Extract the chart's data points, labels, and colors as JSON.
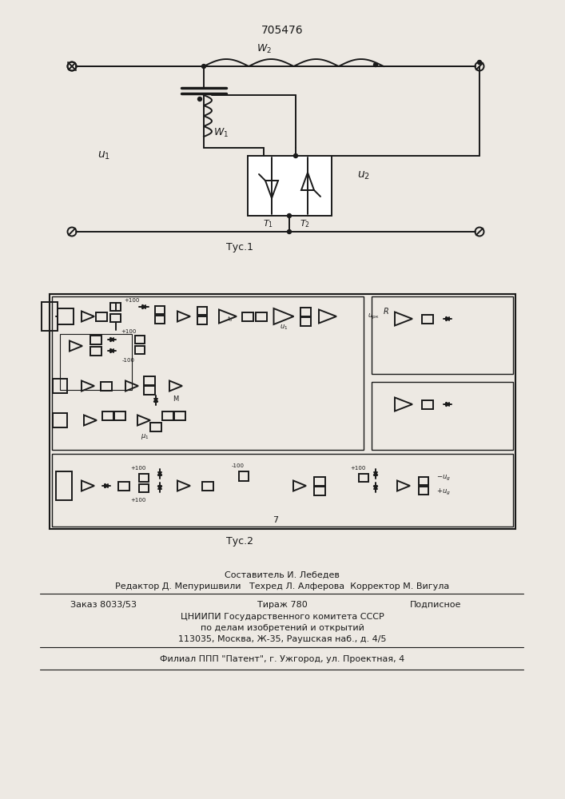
{
  "title": "705476",
  "fig1_label": "Τус.1",
  "fig2_label": "Τус.2",
  "bg_color": "#ede9e3",
  "line_color": "#1a1a1a",
  "text_color": "#1a1a1a",
  "footer_line1": "Составитель И. Лебедев",
  "footer_line2": "Редактор Д. Мепуришвили   Техред Л. Алферова  Корректор М. Вигула",
  "footer_zakaz": "Заказ 8033/53",
  "footer_tirazh": "Тираж 780",
  "footer_podp": "Подписное",
  "footer_cniip1": "ЦНИИПИ Государственного комитета СССР",
  "footer_cniip2": "по делам изобретений и открытий",
  "footer_addr": "113035, Москва, Ж-35, Раушская наб., д. 4/5",
  "footer_filial": "Филиал ППП \"Патент\", г. Ужгород, ул. Проектная, 4"
}
